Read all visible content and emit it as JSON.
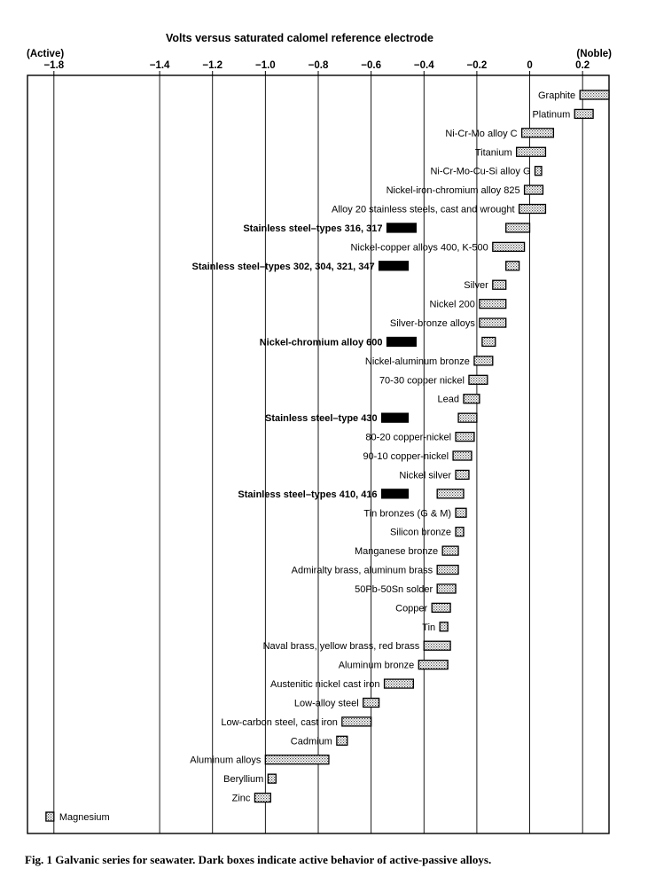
{
  "chart_data": {
    "type": "bar",
    "orientation": "horizontal-range",
    "title": "Volts versus saturated calomel reference electrode",
    "left_label": "(Active)",
    "right_label": "(Noble)",
    "xlim": [
      -1.9,
      0.3
    ],
    "ticks": [
      {
        "value": -1.8,
        "label": "−1.8"
      },
      {
        "value": -1.4,
        "label": "−1.4"
      },
      {
        "value": -1.2,
        "label": "−1.2"
      },
      {
        "value": -1.0,
        "label": "−1.0"
      },
      {
        "value": -0.8,
        "label": "−0.8"
      },
      {
        "value": -0.6,
        "label": "−0.6"
      },
      {
        "value": -0.4,
        "label": "−0.4"
      },
      {
        "value": -0.2,
        "label": "−0.2"
      },
      {
        "value": 0,
        "label": "0"
      },
      {
        "value": 0.2,
        "label": "0.2"
      }
    ],
    "grid": "vertical lines at ticks",
    "legend_note": "Dark boxes indicate active behavior of active-passive alloys.",
    "series": [
      {
        "label": "Graphite",
        "min": 0.19,
        "max": 0.3,
        "active": false
      },
      {
        "label": "Platinum",
        "min": 0.17,
        "max": 0.24,
        "active": false
      },
      {
        "label": "Ni-Cr-Mo alloy C",
        "min": -0.03,
        "max": 0.09,
        "active": false
      },
      {
        "label": "Titanium",
        "min": -0.05,
        "max": 0.06,
        "active": false
      },
      {
        "label": "Ni-Cr-Mo-Cu-Si alloy G",
        "min": 0.02,
        "max": 0.045,
        "active": false
      },
      {
        "label": "Nickel-iron-chromium alloy 825",
        "min": -0.02,
        "max": 0.05,
        "active": false
      },
      {
        "label": "Alloy 20 stainless steels, cast and wrought",
        "min": -0.04,
        "max": 0.06,
        "active": false
      },
      {
        "label": "Stainless steel–types 316, 317",
        "min": -0.09,
        "max": 0.0,
        "active": false
      },
      {
        "label": "Stainless steel–types 316, 317",
        "min": -0.54,
        "max": -0.43,
        "active": true
      },
      {
        "label": "Nickel-copper alloys 400, K-500",
        "min": -0.14,
        "max": -0.02,
        "active": false
      },
      {
        "label": "Stainless steel–types 302, 304, 321, 347",
        "min": -0.09,
        "max": -0.04,
        "active": false
      },
      {
        "label": "Stainless steel–types 302, 304, 321, 347",
        "min": -0.57,
        "max": -0.46,
        "active": true
      },
      {
        "label": "Silver",
        "min": -0.14,
        "max": -0.09,
        "active": false
      },
      {
        "label": "Nickel 200",
        "min": -0.19,
        "max": -0.09,
        "active": false
      },
      {
        "label": "Silver-bronze alloys",
        "min": -0.19,
        "max": -0.09,
        "active": false
      },
      {
        "label": "Nickel-chromium alloy 600",
        "min": -0.18,
        "max": -0.13,
        "active": false
      },
      {
        "label": "Nickel-chromium alloy 600",
        "min": -0.54,
        "max": -0.43,
        "active": true
      },
      {
        "label": "Nickel-aluminum bronze",
        "min": -0.21,
        "max": -0.14,
        "active": false
      },
      {
        "label": "70-30 copper nickel",
        "min": -0.23,
        "max": -0.16,
        "active": false
      },
      {
        "label": "Lead",
        "min": -0.25,
        "max": -0.19,
        "active": false
      },
      {
        "label": "Stainless steel–type 430",
        "min": -0.27,
        "max": -0.2,
        "active": false
      },
      {
        "label": "Stainless steel–type 430",
        "min": -0.56,
        "max": -0.46,
        "active": true
      },
      {
        "label": "80-20 copper-nickel",
        "min": -0.28,
        "max": -0.21,
        "active": false
      },
      {
        "label": "90-10 copper-nickel",
        "min": -0.29,
        "max": -0.22,
        "active": false
      },
      {
        "label": "Nickel silver",
        "min": -0.28,
        "max": -0.23,
        "active": false
      },
      {
        "label": "Stainless steel–types 410, 416",
        "min": -0.35,
        "max": -0.25,
        "active": false
      },
      {
        "label": "Stainless steel–types 410, 416",
        "min": -0.56,
        "max": -0.46,
        "active": true
      },
      {
        "label": "Tin bronzes (G & M)",
        "min": -0.28,
        "max": -0.24,
        "active": false
      },
      {
        "label": "Silicon bronze",
        "min": -0.28,
        "max": -0.25,
        "active": false
      },
      {
        "label": "Manganese bronze",
        "min": -0.33,
        "max": -0.27,
        "active": false
      },
      {
        "label": "Admiralty brass, aluminum brass",
        "min": -0.35,
        "max": -0.27,
        "active": false
      },
      {
        "label": "50Pb-50Sn solder",
        "min": -0.35,
        "max": -0.28,
        "active": false
      },
      {
        "label": "Copper",
        "min": -0.37,
        "max": -0.3,
        "active": false
      },
      {
        "label": "Tin",
        "min": -0.34,
        "max": -0.31,
        "active": false
      },
      {
        "label": "Naval brass, yellow brass, red brass",
        "min": -0.4,
        "max": -0.3,
        "active": false
      },
      {
        "label": "Aluminum bronze",
        "min": -0.42,
        "max": -0.31,
        "active": false
      },
      {
        "label": "Austenitic nickel cast iron",
        "min": -0.55,
        "max": -0.44,
        "active": false
      },
      {
        "label": "Low-alloy steel",
        "min": -0.63,
        "max": -0.57,
        "active": false
      },
      {
        "label": "Low-carbon steel, cast iron",
        "min": -0.71,
        "max": -0.6,
        "active": false
      },
      {
        "label": "Cadmium",
        "min": -0.73,
        "max": -0.69,
        "active": false
      },
      {
        "label": "Aluminum alloys",
        "min": -1.0,
        "max": -0.76,
        "active": false
      },
      {
        "label": "Beryllium",
        "min": -0.99,
        "max": -0.96,
        "active": false
      },
      {
        "label": "Zinc",
        "min": -1.04,
        "max": -0.98,
        "active": false
      },
      {
        "label": "Magnesium",
        "min": -1.83,
        "max": -1.8,
        "active": false
      }
    ]
  },
  "caption": "Fig. 1  Galvanic series for seawater. Dark boxes indicate active behavior of active-passive alloys."
}
